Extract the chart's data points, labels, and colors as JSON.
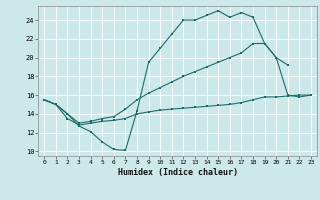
{
  "xlabel": "Humidex (Indice chaleur)",
  "bg_color": "#cce8e8",
  "line_color": "#1e6b6b",
  "grid_color": "#b8d8d8",
  "xlim": [
    -0.5,
    23.5
  ],
  "ylim": [
    9.5,
    25.5
  ],
  "xticks": [
    0,
    1,
    2,
    3,
    4,
    5,
    6,
    7,
    8,
    9,
    10,
    11,
    12,
    13,
    14,
    15,
    16,
    17,
    18,
    19,
    20,
    21,
    22,
    23
  ],
  "yticks": [
    10,
    12,
    14,
    16,
    18,
    20,
    22,
    24
  ],
  "line1_x": [
    0,
    1,
    2,
    3,
    4,
    5,
    6,
    7,
    8,
    9,
    10,
    11,
    12,
    13,
    14,
    15,
    16,
    17,
    18,
    19,
    20,
    21
  ],
  "line1_y": [
    15.5,
    15.0,
    14.0,
    12.7,
    12.1,
    11.0,
    10.2,
    10.1,
    14.3,
    19.5,
    21.0,
    22.5,
    24.0,
    24.0,
    24.5,
    25.0,
    24.3,
    24.8,
    24.3,
    21.5,
    20.0,
    19.2
  ],
  "line2_x": [
    0,
    1,
    2,
    3,
    4,
    5,
    6,
    7,
    8,
    9,
    10,
    11,
    12,
    13,
    14,
    15,
    16,
    17,
    18,
    19,
    20,
    21,
    22,
    23
  ],
  "line2_y": [
    15.5,
    15.0,
    14.0,
    13.0,
    13.2,
    13.5,
    13.7,
    14.5,
    15.5,
    16.2,
    16.8,
    17.4,
    18.0,
    18.5,
    19.0,
    19.5,
    20.0,
    20.5,
    21.5,
    21.5,
    20.0,
    16.0,
    15.8,
    16.0
  ],
  "line3_x": [
    0,
    1,
    2,
    3,
    4,
    5,
    6,
    7,
    8,
    9,
    10,
    11,
    12,
    13,
    14,
    15,
    16,
    17,
    18,
    19,
    20,
    21,
    22,
    23
  ],
  "line3_y": [
    15.5,
    15.0,
    13.5,
    12.8,
    13.0,
    13.2,
    13.3,
    13.5,
    14.0,
    14.2,
    14.4,
    14.5,
    14.6,
    14.7,
    14.8,
    14.9,
    15.0,
    15.2,
    15.5,
    15.8,
    15.8,
    15.9,
    16.0,
    16.0
  ]
}
